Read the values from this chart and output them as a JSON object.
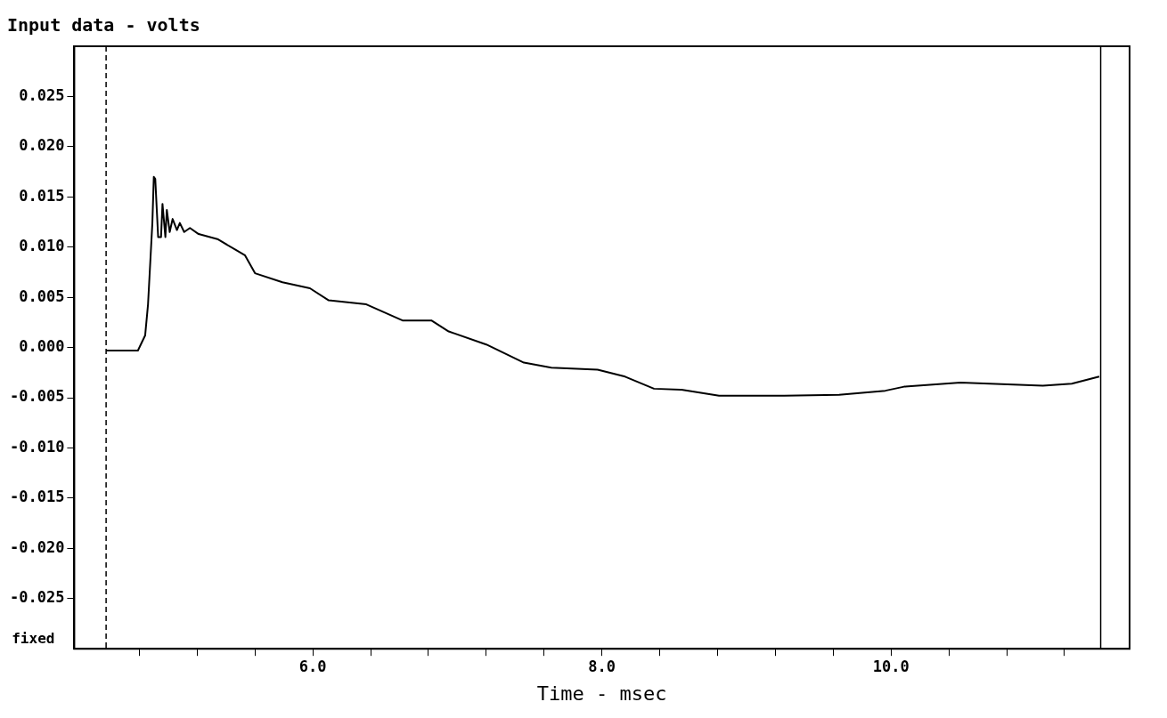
{
  "chart_data": {
    "type": "line",
    "title": "Input data - volts",
    "xlabel": "Time - msec",
    "annotations": [
      "fixed"
    ],
    "x": [
      4.57,
      4.79,
      4.84,
      4.86,
      4.89,
      4.9,
      4.91,
      4.93,
      4.95,
      4.96,
      4.98,
      4.99,
      5.01,
      5.03,
      5.06,
      5.08,
      5.11,
      5.15,
      5.21,
      5.34,
      5.47,
      5.53,
      5.6,
      5.79,
      5.98,
      6.11,
      6.37,
      6.62,
      6.82,
      6.94,
      7.2,
      7.46,
      7.65,
      7.97,
      8.16,
      8.36,
      8.55,
      8.81,
      9.26,
      9.64,
      9.96,
      10.09,
      10.48,
      11.05,
      11.25,
      11.44
    ],
    "series": [
      {
        "color": "#000000",
        "values": [
          -0.0003,
          -0.0003,
          0.0012,
          0.0043,
          0.0124,
          0.017,
          0.0168,
          0.011,
          0.011,
          0.0143,
          0.011,
          0.0137,
          0.0115,
          0.0128,
          0.0117,
          0.0124,
          0.0115,
          0.0119,
          0.0113,
          0.0108,
          0.0097,
          0.0092,
          0.0074,
          0.0065,
          0.0059,
          0.0047,
          0.0043,
          0.0027,
          0.0027,
          0.0016,
          0.0003,
          -0.0015,
          -0.002,
          -0.0022,
          -0.0029,
          -0.0041,
          -0.0042,
          -0.0048,
          -0.0048,
          -0.0047,
          -0.0043,
          -0.0039,
          -0.0035,
          -0.0038,
          -0.0036,
          -0.0029
        ]
      }
    ],
    "xlim": [
      4.35,
      11.65
    ],
    "xticks": [
      {
        "value": 4.8,
        "label": null
      },
      {
        "value": 5.2,
        "label": null
      },
      {
        "value": 5.6,
        "label": null
      },
      {
        "value": 6,
        "label": "6.0"
      },
      {
        "value": 6.4,
        "label": null
      },
      {
        "value": 6.8,
        "label": null
      },
      {
        "value": 7.2,
        "label": null
      },
      {
        "value": 7.6,
        "label": null
      },
      {
        "value": 8,
        "label": "8.0"
      },
      {
        "value": 8.4,
        "label": null
      },
      {
        "value": 8.8,
        "label": null
      },
      {
        "value": 9.2,
        "label": null
      },
      {
        "value": 9.6,
        "label": null
      },
      {
        "value": 10,
        "label": "10.0"
      },
      {
        "value": 10.4,
        "label": null
      },
      {
        "value": 10.8,
        "label": null
      },
      {
        "value": 11.2,
        "label": null
      }
    ],
    "ylim": [
      -0.03,
      0.03
    ],
    "yticks": [
      {
        "value": -0.025,
        "label": "-0.025"
      },
      {
        "value": -0.02,
        "label": "-0.020"
      },
      {
        "value": -0.015,
        "label": "-0.015"
      },
      {
        "value": -0.01,
        "label": "-0.010"
      },
      {
        "value": -0.005,
        "label": "-0.005"
      },
      {
        "value": 0,
        "label": "0.000"
      },
      {
        "value": 0.005,
        "label": "0.005"
      },
      {
        "value": 0.01,
        "label": "0.010"
      },
      {
        "value": 0.015,
        "label": "0.015"
      },
      {
        "value": 0.02,
        "label": "0.020"
      },
      {
        "value": 0.025,
        "label": "0.025"
      }
    ],
    "ref_lines": [
      {
        "axis": "x",
        "value": 4.57,
        "line_style": "dashed",
        "color": "#000000"
      },
      {
        "axis": "x",
        "value": 11.45,
        "line_style": "solid",
        "color": "#000000"
      }
    ],
    "grid": false,
    "legend": false,
    "marker": "none",
    "line_style": "solid"
  }
}
